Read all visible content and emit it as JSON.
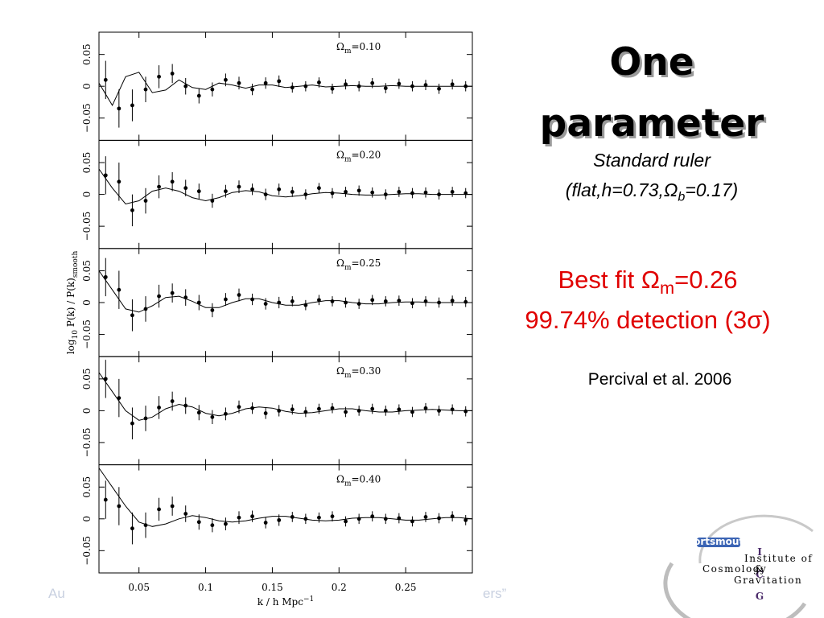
{
  "slide": {
    "title_line1": "One",
    "title_line2": "parameter",
    "subtitle1": "Standard ruler",
    "subtitle2": {
      "prefix": "(flat,h=0.73,",
      "symbol": "Ω",
      "sub": "b",
      "suffix": "=0.17)"
    },
    "best_fit": {
      "prefix": "Best fit ",
      "symbol": "Ω",
      "sub": "m",
      "suffix": "=0.26"
    },
    "detection": "99.74% detection (3σ)",
    "citation": "Percival et al. 2006",
    "footer_left": "Au",
    "footer_right": "ers”",
    "logo": {
      "badge": "Portsmouth",
      "i": "I",
      "c": "C",
      "g": "G",
      "line1": "Institute of",
      "line2": "Cosmology",
      "amp": "&",
      "line3": "Gravitation"
    }
  },
  "figure": {
    "xlabel": {
      "text": "k / h Mpc",
      "sup": "−1"
    },
    "ylabel": {
      "a": "log",
      "a_sub": "10",
      "b": " P(k) / P(k)",
      "b_sub": "smooth"
    }
  },
  "chart_data": [
    {
      "type": "scatter",
      "annotation": {
        "symbol": "Ω",
        "sub": "m",
        "value": "=0.10"
      },
      "x": [
        0.025,
        0.035,
        0.045,
        0.055,
        0.065,
        0.075,
        0.085,
        0.095,
        0.105,
        0.115,
        0.125,
        0.135,
        0.145,
        0.155,
        0.165,
        0.175,
        0.185,
        0.195,
        0.205,
        0.215,
        0.225,
        0.235,
        0.245,
        0.255,
        0.265,
        0.275,
        0.285,
        0.295
      ],
      "values": [
        0.01,
        -0.035,
        -0.03,
        -0.005,
        0.015,
        0.02,
        0.0,
        -0.015,
        -0.005,
        0.01,
        0.005,
        -0.005,
        0.005,
        0.008,
        -0.002,
        0.0,
        0.006,
        -0.004,
        0.003,
        0.0,
        0.005,
        -0.003,
        0.004,
        0.0,
        0.002,
        -0.004,
        0.003,
        0.0
      ],
      "errors": [
        0.03,
        0.03,
        0.025,
        0.02,
        0.018,
        0.015,
        0.013,
        0.012,
        0.011,
        0.01,
        0.01,
        0.009,
        0.009,
        0.009,
        0.008,
        0.008,
        0.008,
        0.008,
        0.008,
        0.008,
        0.008,
        0.008,
        0.008,
        0.008,
        0.008,
        0.008,
        0.008,
        0.008
      ],
      "model_x": [
        0.02,
        0.03,
        0.04,
        0.05,
        0.06,
        0.07,
        0.08,
        0.09,
        0.1,
        0.11,
        0.12,
        0.13,
        0.14,
        0.15,
        0.16,
        0.17,
        0.18,
        0.19,
        0.2,
        0.21,
        0.22,
        0.23,
        0.24,
        0.25,
        0.26,
        0.27,
        0.28,
        0.29,
        0.3
      ],
      "model_values": [
        0.005,
        -0.03,
        0.015,
        0.022,
        -0.01,
        -0.006,
        0.01,
        -0.002,
        -0.005,
        0.005,
        0.002,
        -0.003,
        0.002,
        0.002,
        -0.002,
        0,
        0.002,
        -0.001,
        0,
        0.001,
        0,
        0,
        0.001,
        0,
        0,
        0,
        0,
        0,
        0
      ],
      "xlim": [
        0.02,
        0.3
      ],
      "ylim": [
        -0.085,
        0.085
      ],
      "xticks": [
        0.05,
        0.1,
        0.15,
        0.2,
        0.25
      ],
      "yticks": [
        {
          "value": -0.05,
          "label": "−0.05"
        },
        0,
        0.05
      ]
    },
    {
      "type": "scatter",
      "annotation": {
        "symbol": "Ω",
        "sub": "m",
        "value": "=0.20"
      },
      "x": [
        0.025,
        0.035,
        0.045,
        0.055,
        0.065,
        0.075,
        0.085,
        0.095,
        0.105,
        0.115,
        0.125,
        0.135,
        0.145,
        0.155,
        0.165,
        0.175,
        0.185,
        0.195,
        0.205,
        0.215,
        0.225,
        0.235,
        0.245,
        0.255,
        0.265,
        0.275,
        0.285,
        0.295
      ],
      "values": [
        0.03,
        0.02,
        -0.025,
        -0.01,
        0.012,
        0.02,
        0.01,
        0.005,
        -0.01,
        0.005,
        0.012,
        0.008,
        0.0,
        0.008,
        0.004,
        0.0,
        0.01,
        0.002,
        0.004,
        0.006,
        0.003,
        0.0,
        0.004,
        0.002,
        0.003,
        0.0,
        0.004,
        0.002
      ],
      "errors": [
        0.03,
        0.03,
        0.025,
        0.02,
        0.018,
        0.015,
        0.013,
        0.012,
        0.011,
        0.01,
        0.01,
        0.009,
        0.009,
        0.009,
        0.008,
        0.008,
        0.008,
        0.008,
        0.008,
        0.008,
        0.008,
        0.008,
        0.008,
        0.008,
        0.008,
        0.008,
        0.008,
        0.008
      ],
      "model_x": [
        0.02,
        0.03,
        0.04,
        0.05,
        0.06,
        0.07,
        0.08,
        0.09,
        0.1,
        0.11,
        0.12,
        0.13,
        0.14,
        0.15,
        0.16,
        0.17,
        0.18,
        0.19,
        0.2,
        0.21,
        0.22,
        0.23,
        0.24,
        0.25,
        0.26,
        0.27,
        0.28,
        0.29,
        0.3
      ],
      "model_values": [
        0.04,
        0.01,
        -0.015,
        -0.01,
        0.005,
        0.01,
        0.005,
        -0.005,
        -0.01,
        -0.005,
        0.003,
        0.006,
        0.004,
        -0.002,
        -0.004,
        -0.002,
        0.001,
        0.003,
        0.002,
        0,
        -0.001,
        -0.001,
        0,
        0.001,
        0.001,
        0,
        0,
        0,
        0
      ],
      "xlim": [
        0.02,
        0.3
      ],
      "ylim": [
        -0.085,
        0.085
      ],
      "xticks": [
        0.05,
        0.1,
        0.15,
        0.2,
        0.25
      ],
      "yticks": [
        {
          "value": -0.05,
          "label": "−0.05"
        },
        0,
        0.05
      ]
    },
    {
      "type": "scatter",
      "annotation": {
        "symbol": "Ω",
        "sub": "m",
        "value": "=0.25"
      },
      "x": [
        0.025,
        0.035,
        0.045,
        0.055,
        0.065,
        0.075,
        0.085,
        0.095,
        0.105,
        0.115,
        0.125,
        0.135,
        0.145,
        0.155,
        0.165,
        0.175,
        0.185,
        0.195,
        0.205,
        0.215,
        0.225,
        0.235,
        0.245,
        0.255,
        0.265,
        0.275,
        0.285,
        0.295
      ],
      "values": [
        0.04,
        0.02,
        -0.02,
        -0.01,
        0.01,
        0.015,
        0.008,
        0.0,
        -0.012,
        0.005,
        0.012,
        0.005,
        -0.002,
        0.0,
        0.002,
        -0.004,
        0.004,
        0.002,
        0.0,
        -0.002,
        0.004,
        0.002,
        0.003,
        -0.001,
        0.002,
        0.0,
        0.003,
        0.001
      ],
      "errors": [
        0.03,
        0.03,
        0.025,
        0.02,
        0.018,
        0.015,
        0.013,
        0.012,
        0.011,
        0.01,
        0.01,
        0.009,
        0.009,
        0.009,
        0.008,
        0.008,
        0.008,
        0.008,
        0.008,
        0.008,
        0.008,
        0.008,
        0.008,
        0.008,
        0.008,
        0.008,
        0.008,
        0.008
      ],
      "model_x": [
        0.02,
        0.03,
        0.04,
        0.05,
        0.06,
        0.07,
        0.08,
        0.09,
        0.1,
        0.11,
        0.12,
        0.13,
        0.14,
        0.15,
        0.16,
        0.17,
        0.18,
        0.19,
        0.2,
        0.21,
        0.22,
        0.23,
        0.24,
        0.25,
        0.26,
        0.27,
        0.28,
        0.29,
        0.3
      ],
      "model_values": [
        0.05,
        0.02,
        -0.01,
        -0.015,
        -0.005,
        0.008,
        0.01,
        0.002,
        -0.008,
        -0.008,
        0.0,
        0.006,
        0.006,
        0.0,
        -0.004,
        -0.004,
        0,
        0.003,
        0.003,
        0,
        -0.002,
        -0.002,
        0,
        0.001,
        0.001,
        0,
        0,
        0,
        0
      ],
      "xlim": [
        0.02,
        0.3
      ],
      "ylim": [
        -0.085,
        0.085
      ],
      "xticks": [
        0.05,
        0.1,
        0.15,
        0.2,
        0.25
      ],
      "yticks": [
        {
          "value": -0.05,
          "label": "−0.05"
        },
        0,
        0.05
      ]
    },
    {
      "type": "scatter",
      "annotation": {
        "symbol": "Ω",
        "sub": "m",
        "value": "=0.30"
      },
      "x": [
        0.025,
        0.035,
        0.045,
        0.055,
        0.065,
        0.075,
        0.085,
        0.095,
        0.105,
        0.115,
        0.125,
        0.135,
        0.145,
        0.155,
        0.165,
        0.175,
        0.185,
        0.195,
        0.205,
        0.215,
        0.225,
        0.235,
        0.245,
        0.255,
        0.265,
        0.275,
        0.285,
        0.295
      ],
      "values": [
        0.05,
        0.02,
        -0.02,
        -0.012,
        0.005,
        0.015,
        0.008,
        -0.003,
        -0.01,
        -0.005,
        0.006,
        0.004,
        -0.004,
        0.0,
        0.002,
        -0.002,
        0.003,
        0.004,
        -0.002,
        0.0,
        0.003,
        0.0,
        0.002,
        -0.002,
        0.004,
        0.0,
        0.002,
        -0.001
      ],
      "errors": [
        0.03,
        0.03,
        0.025,
        0.02,
        0.018,
        0.015,
        0.013,
        0.012,
        0.011,
        0.01,
        0.01,
        0.009,
        0.009,
        0.009,
        0.008,
        0.008,
        0.008,
        0.008,
        0.008,
        0.008,
        0.008,
        0.008,
        0.008,
        0.008,
        0.008,
        0.008,
        0.008,
        0.008
      ],
      "model_x": [
        0.02,
        0.03,
        0.04,
        0.05,
        0.06,
        0.07,
        0.08,
        0.09,
        0.1,
        0.11,
        0.12,
        0.13,
        0.14,
        0.15,
        0.16,
        0.17,
        0.18,
        0.19,
        0.2,
        0.21,
        0.22,
        0.23,
        0.24,
        0.25,
        0.26,
        0.27,
        0.28,
        0.29,
        0.3
      ],
      "model_values": [
        0.06,
        0.03,
        0.0,
        -0.015,
        -0.01,
        0.003,
        0.01,
        0.006,
        -0.004,
        -0.008,
        -0.004,
        0.003,
        0.006,
        0.004,
        -0.001,
        -0.004,
        -0.003,
        0,
        0.003,
        0.003,
        0,
        -0.002,
        -0.002,
        0,
        0.001,
        0.002,
        0.001,
        0,
        0
      ],
      "xlim": [
        0.02,
        0.3
      ],
      "ylim": [
        -0.085,
        0.085
      ],
      "xticks": [
        0.05,
        0.1,
        0.15,
        0.2,
        0.25
      ],
      "yticks": [
        {
          "value": -0.05,
          "label": "−0.05"
        },
        0,
        0.05
      ]
    },
    {
      "type": "scatter",
      "annotation": {
        "symbol": "Ω",
        "sub": "m",
        "value": "=0.40"
      },
      "x": [
        0.025,
        0.035,
        0.045,
        0.055,
        0.065,
        0.075,
        0.085,
        0.095,
        0.105,
        0.115,
        0.125,
        0.135,
        0.145,
        0.155,
        0.165,
        0.175,
        0.185,
        0.195,
        0.205,
        0.215,
        0.225,
        0.235,
        0.245,
        0.255,
        0.265,
        0.275,
        0.285,
        0.295
      ],
      "values": [
        0.03,
        0.02,
        -0.015,
        -0.01,
        0.015,
        0.02,
        0.008,
        -0.005,
        -0.01,
        -0.008,
        0.002,
        0.004,
        -0.006,
        -0.002,
        0.003,
        0.0,
        0.002,
        0.004,
        -0.004,
        0.0,
        0.004,
        0.0,
        0.001,
        -0.004,
        0.003,
        0.001,
        0.004,
        -0.002
      ],
      "errors": [
        0.03,
        0.03,
        0.025,
        0.02,
        0.018,
        0.015,
        0.013,
        0.012,
        0.011,
        0.01,
        0.01,
        0.009,
        0.009,
        0.009,
        0.008,
        0.008,
        0.008,
        0.008,
        0.008,
        0.008,
        0.008,
        0.008,
        0.008,
        0.008,
        0.008,
        0.008,
        0.008,
        0.008
      ],
      "model_x": [
        0.02,
        0.03,
        0.04,
        0.05,
        0.06,
        0.07,
        0.08,
        0.09,
        0.1,
        0.11,
        0.12,
        0.13,
        0.14,
        0.15,
        0.16,
        0.17,
        0.18,
        0.19,
        0.2,
        0.21,
        0.22,
        0.23,
        0.24,
        0.25,
        0.26,
        0.27,
        0.28,
        0.29,
        0.3
      ],
      "model_values": [
        0.08,
        0.05,
        0.02,
        -0.005,
        -0.012,
        -0.008,
        0.0,
        0.005,
        0.002,
        -0.003,
        -0.005,
        -0.003,
        0.001,
        0.004,
        0.004,
        0.001,
        -0.002,
        -0.003,
        -0.002,
        0.001,
        0.002,
        0.002,
        0,
        -0.002,
        -0.002,
        0,
        0.002,
        0.002,
        0
      ],
      "xlim": [
        0.02,
        0.3
      ],
      "ylim": [
        -0.085,
        0.085
      ],
      "xticks": [
        0.05,
        0.1,
        0.15,
        0.2,
        0.25
      ],
      "yticks": [
        {
          "value": -0.05,
          "label": "−0.05"
        },
        0,
        0.05
      ]
    }
  ]
}
